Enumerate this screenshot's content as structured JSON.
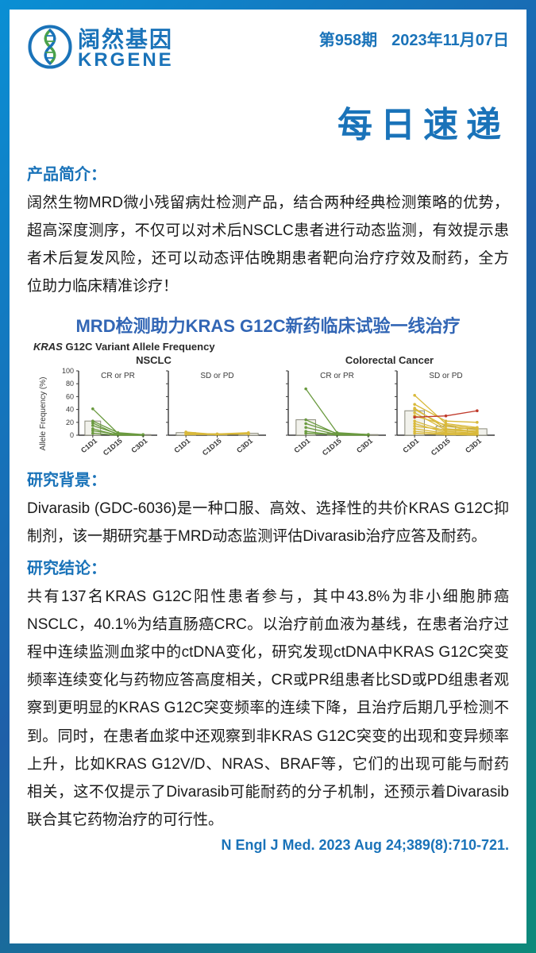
{
  "header": {
    "logo_cn": "阔然基因",
    "logo_en": "KRGENE",
    "issue": "第958期",
    "date": "2023年11月07日"
  },
  "main_title": "每日速递",
  "intro": {
    "label": "产品简介：",
    "text": "阔然生物MRD微小残留病灶检测产品，结合两种经典检测策略的优势，超高深度测序，不仅可以对术后NSCLC患者进行动态监测，有效提示患者术后复发风险，还可以动态评估晚期患者靶向治疗疗效及耐药，全方位助力临床精准诊疗！"
  },
  "chart": {
    "title": "MRD检测助力KRAS G12C新药临床试验一线治疗",
    "subtitle_prefix": "KRAS",
    "subtitle_rest": " G12C Variant Allele Frequency",
    "y_label": "Allele Frequency (%)",
    "x_ticks": [
      "C1D1",
      "C1D15",
      "C3D1"
    ],
    "y_ticks": [
      0,
      20,
      40,
      60,
      80,
      100
    ],
    "ylim": [
      0,
      100
    ],
    "colors": {
      "green": "#6a9a3f",
      "yellow": "#d9b93a",
      "red": "#c03a2b",
      "axis": "#3a3a3a",
      "bg": "#ffffff",
      "bar_fill": "#f2f2ec",
      "bar_border": "#8a8a7a"
    },
    "panels": [
      {
        "group_title": "NSCLC",
        "sub": [
          {
            "label": "CR or PR",
            "bars": [
              22,
              2,
              1
            ],
            "series": [
              {
                "c": "green",
                "pts": [
                  41,
                  3,
                  0
                ]
              },
              {
                "c": "green",
                "pts": [
                  19,
                  1,
                  0
                ]
              },
              {
                "c": "green",
                "pts": [
                  22,
                  4,
                  1
                ]
              },
              {
                "c": "green",
                "pts": [
                  15,
                  2,
                  0
                ]
              },
              {
                "c": "green",
                "pts": [
                  10,
                  0,
                  0
                ]
              },
              {
                "c": "green",
                "pts": [
                  7,
                  1,
                  0
                ]
              },
              {
                "c": "green",
                "pts": [
                  3,
                  0,
                  0
                ]
              }
            ]
          },
          {
            "label": "SD or PD",
            "bars": [
              4,
              2,
              3
            ],
            "series": [
              {
                "c": "yellow",
                "pts": [
                  3,
                  2,
                  3
                ]
              },
              {
                "c": "yellow",
                "pts": [
                  5,
                  1,
                  2
                ]
              },
              {
                "c": "yellow",
                "pts": [
                  2,
                  2,
                  4
                ]
              },
              {
                "c": "yellow",
                "pts": [
                  1,
                  1,
                  2
                ]
              }
            ]
          }
        ]
      },
      {
        "group_title": "Colorectal Cancer",
        "sub": [
          {
            "label": "CR or PR",
            "bars": [
              24,
              3,
              1
            ],
            "series": [
              {
                "c": "green",
                "pts": [
                  72,
                  4,
                  1
                ]
              },
              {
                "c": "green",
                "pts": [
                  24,
                  2,
                  0
                ]
              },
              {
                "c": "green",
                "pts": [
                  18,
                  3,
                  1
                ]
              },
              {
                "c": "green",
                "pts": [
                  12,
                  1,
                  0
                ]
              },
              {
                "c": "green",
                "pts": [
                  6,
                  0,
                  0
                ]
              },
              {
                "c": "green",
                "pts": [
                  3,
                  1,
                  0
                ]
              }
            ]
          },
          {
            "label": "SD or PD",
            "bars": [
              38,
              14,
              10
            ],
            "series": [
              {
                "c": "yellow",
                "pts": [
                  62,
                  18,
                  12
                ]
              },
              {
                "c": "yellow",
                "pts": [
                  48,
                  22,
                  20
                ]
              },
              {
                "c": "yellow",
                "pts": [
                  42,
                  10,
                  6
                ]
              },
              {
                "c": "yellow",
                "pts": [
                  40,
                  14,
                  8
                ]
              },
              {
                "c": "yellow",
                "pts": [
                  35,
                  8,
                  5
                ]
              },
              {
                "c": "yellow",
                "pts": [
                  30,
                  16,
                  10
                ]
              },
              {
                "c": "red",
                "pts": [
                  28,
                  30,
                  38
                ]
              },
              {
                "c": "yellow",
                "pts": [
                  22,
                  6,
                  3
                ]
              },
              {
                "c": "yellow",
                "pts": [
                  18,
                  4,
                  2
                ]
              },
              {
                "c": "yellow",
                "pts": [
                  14,
                  8,
                  12
                ]
              },
              {
                "c": "yellow",
                "pts": [
                  10,
                  3,
                  1
                ]
              },
              {
                "c": "yellow",
                "pts": [
                  6,
                  2,
                  4
                ]
              },
              {
                "c": "yellow",
                "pts": [
                  3,
                  1,
                  0
                ]
              }
            ]
          }
        ]
      }
    ]
  },
  "background": {
    "label": "研究背景：",
    "text": "Divarasib (GDC-6036)是一种口服、高效、选择性的共价KRAS G12C抑制剂，该一期研究基于MRD动态监测评估Divarasib治疗应答及耐药。"
  },
  "conclusion": {
    "label": "研究结论：",
    "text": "共有137名KRAS G12C阳性患者参与，其中43.8%为非小细胞肺癌NSCLC，40.1%为结直肠癌CRC。以治疗前血液为基线，在患者治疗过程中连续监测血浆中的ctDNA变化，研究发现ctDNA中KRAS G12C突变频率连续变化与药物应答高度相关，CR或PR组患者比SD或PD组患者观察到更明显的KRAS G12C突变频率的连续下降，且治疗后期几乎检测不到。同时，在患者血浆中还观察到非KRAS G12C突变的出现和变异频率上升，比如KRAS G12V/D、NRAS、BRAF等，它们的出现可能与耐药相关，这不仅提示了Divarasib可能耐药的分子机制，还预示着Divarasib联合其它药物治疗的可行性。"
  },
  "citation": "N Engl J Med. 2023 Aug 24;389(8):710-721."
}
